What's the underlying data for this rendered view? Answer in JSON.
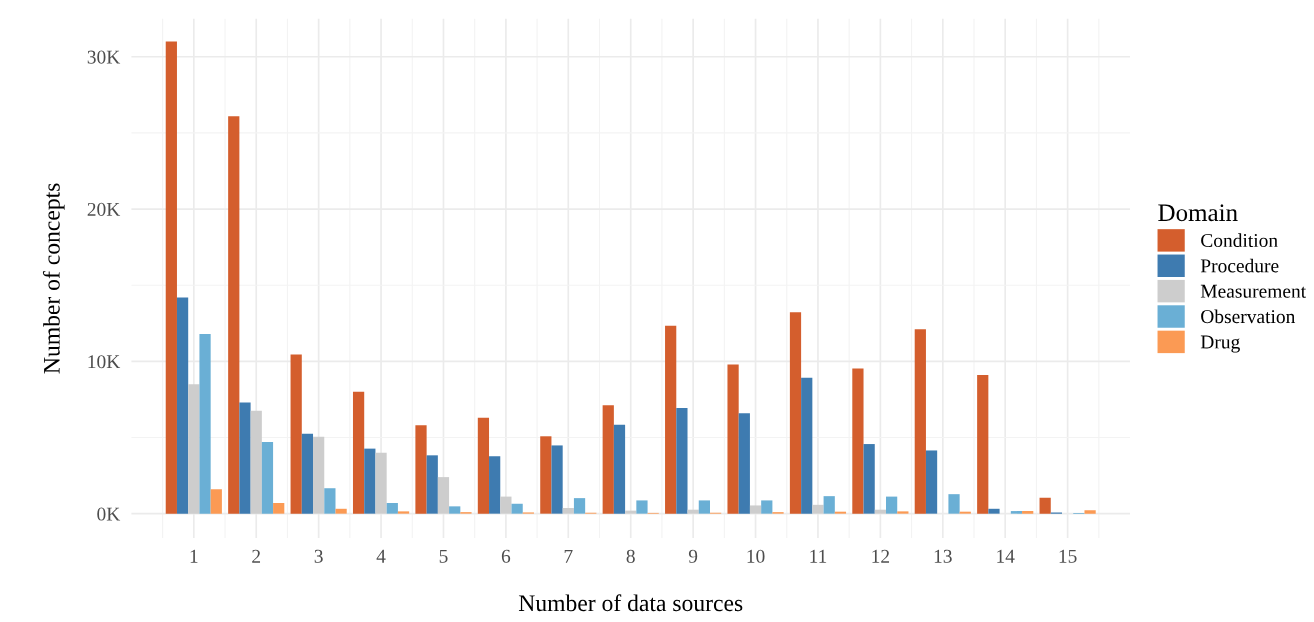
{
  "chart_data": {
    "type": "bar",
    "xlabel": "Number of data sources",
    "ylabel": "Number of concepts",
    "legend_title": "Domain",
    "legend": "right",
    "grid": true,
    "categories": [
      "1",
      "2",
      "3",
      "4",
      "5",
      "6",
      "7",
      "8",
      "9",
      "10",
      "11",
      "12",
      "13",
      "14",
      "15"
    ],
    "ylim": [
      -1.6,
      32.5
    ],
    "yticks": [
      {
        "value": 0,
        "label": "0K"
      },
      {
        "value": 10,
        "label": "10K"
      },
      {
        "value": 20,
        "label": "20K"
      },
      {
        "value": 30,
        "label": "30K"
      }
    ],
    "series": [
      {
        "name": "Condition",
        "color": "#d45e2d",
        "values": [
          31.0,
          26.1,
          10.45,
          8.0,
          5.8,
          6.3,
          5.08,
          7.12,
          12.34,
          9.8,
          13.23,
          9.53,
          12.1,
          9.1,
          1.04
        ]
      },
      {
        "name": "Procedure",
        "color": "#3e7bb0",
        "values": [
          14.2,
          7.3,
          5.25,
          4.27,
          3.83,
          3.77,
          4.48,
          5.83,
          6.93,
          6.6,
          8.92,
          4.57,
          4.15,
          0.32,
          0.08
        ]
      },
      {
        "name": "Measurement",
        "color": "#cdcdcd",
        "values": [
          8.5,
          6.75,
          5.05,
          4.0,
          2.4,
          1.12,
          0.37,
          0.2,
          0.26,
          0.54,
          0.58,
          0.26,
          null,
          null,
          null
        ]
      },
      {
        "name": "Observation",
        "color": "#6aafd5",
        "values": [
          11.8,
          4.7,
          1.67,
          0.7,
          0.48,
          0.65,
          1.02,
          0.87,
          0.87,
          0.87,
          1.15,
          1.12,
          1.28,
          0.17,
          0.05
        ]
      },
      {
        "name": "Drug",
        "color": "#fb9a54",
        "values": [
          1.6,
          0.7,
          0.32,
          0.15,
          0.1,
          0.08,
          0.06,
          0.05,
          0.06,
          0.1,
          0.13,
          0.15,
          0.13,
          0.17,
          0.22
        ]
      }
    ]
  }
}
